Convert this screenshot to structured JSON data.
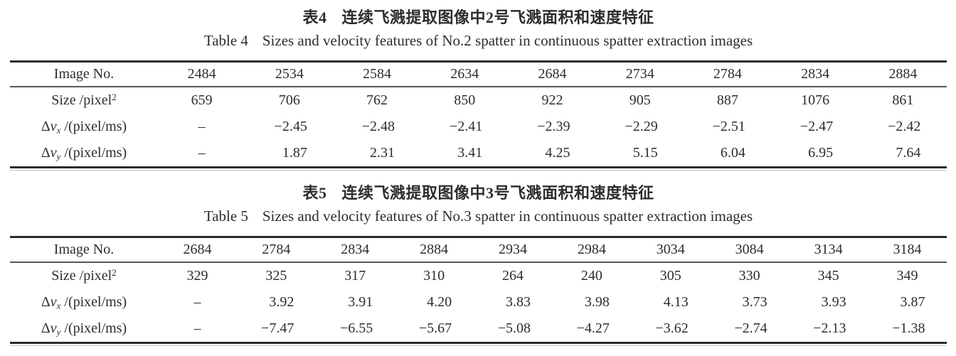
{
  "page": {
    "background": "#ffffff",
    "ink_color": "#2d2d2d",
    "rule_color": "#2c2c2c"
  },
  "tables": [
    {
      "caption_cn": {
        "label": "表4",
        "text": "连续飞溅提取图像中2号飞溅面积和速度特征"
      },
      "caption_en": {
        "label": "Table 4",
        "text": "Sizes and velocity features of No.2 spatter in continuous spatter extraction images"
      },
      "header_label": "Image No.",
      "columns": [
        "2484",
        "2534",
        "2584",
        "2634",
        "2684",
        "2734",
        "2784",
        "2834",
        "2884"
      ],
      "rows": [
        {
          "label": [
            {
              "t": "Size /pixel"
            },
            {
              "t": "2",
              "sup": true
            }
          ],
          "values": [
            "659",
            "706",
            "762",
            "850",
            "922",
            "905",
            "887",
            "1076",
            "861"
          ]
        },
        {
          "label": [
            {
              "t": "Δ"
            },
            {
              "t": "v",
              "italic": true
            },
            {
              "t": "x",
              "sub": true,
              "italic": true
            },
            {
              "t": " /(pixel/ms)"
            }
          ],
          "values": [
            "–",
            "−2.45",
            "−2.48",
            "−2.41",
            "−2.39",
            "−2.29",
            "−2.51",
            "−2.47",
            "−2.42"
          ]
        },
        {
          "label": [
            {
              "t": "Δ"
            },
            {
              "t": "v",
              "italic": true
            },
            {
              "t": "y",
              "sub": true,
              "italic": true
            },
            {
              "t": " /(pixel/ms)"
            }
          ],
          "values": [
            "–",
            "1.87",
            "2.31",
            "3.41",
            "4.25",
            "5.15",
            "6.04",
            "6.95",
            "7.64"
          ]
        }
      ]
    },
    {
      "caption_cn": {
        "label": "表5",
        "text": "连续飞溅提取图像中3号飞溅面积和速度特征"
      },
      "caption_en": {
        "label": "Table 5",
        "text": "Sizes and velocity features of No.3 spatter in continuous spatter extraction images"
      },
      "header_label": "Image No.",
      "columns": [
        "2684",
        "2784",
        "2834",
        "2884",
        "2934",
        "2984",
        "3034",
        "3084",
        "3134",
        "3184"
      ],
      "rows": [
        {
          "label": [
            {
              "t": "Size /pixel"
            },
            {
              "t": "2",
              "sup": true
            }
          ],
          "values": [
            "329",
            "325",
            "317",
            "310",
            "264",
            "240",
            "305",
            "330",
            "345",
            "349"
          ]
        },
        {
          "label": [
            {
              "t": "Δ"
            },
            {
              "t": "v",
              "italic": true
            },
            {
              "t": "x",
              "sub": true,
              "italic": true
            },
            {
              "t": " /(pixel/ms)"
            }
          ],
          "values": [
            "–",
            "3.92",
            "3.91",
            "4.20",
            "3.83",
            "3.98",
            "4.13",
            "3.73",
            "3.93",
            "3.87"
          ]
        },
        {
          "label": [
            {
              "t": "Δ"
            },
            {
              "t": "v",
              "italic": true
            },
            {
              "t": "y",
              "sub": true,
              "italic": true
            },
            {
              "t": " /(pixel/ms)"
            }
          ],
          "values": [
            "–",
            "−7.47",
            "−6.55",
            "−5.67",
            "−5.08",
            "−4.27",
            "−3.62",
            "−2.74",
            "−2.13",
            "−1.38"
          ]
        }
      ]
    }
  ]
}
